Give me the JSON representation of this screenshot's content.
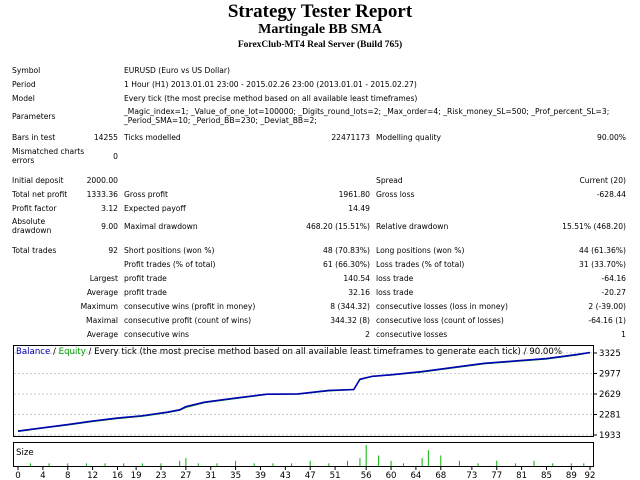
{
  "report": {
    "title": "Strategy Tester Report",
    "subtitle": "Martingale BB SMA",
    "server": "ForexClub-MT4 Real Server (Build 765)"
  },
  "info": {
    "symbol_label": "Symbol",
    "symbol": "EURUSD (Euro vs US Dollar)",
    "period_label": "Period",
    "period": "1 Hour (H1) 2013.01.01 23:00 - 2015.02.26 23:00 (2013.01.01 - 2015.02.27)",
    "model_label": "Model",
    "model": "Every tick (the most precise method based on all available least timeframes)",
    "parameters_label": "Parameters",
    "parameters": "_Magic_index=1; _Value_of_one_lot=100000; _Digits_round_lots=2; _Max_order=4; _Risk_money_SL=500; _Prof_percent_SL=3; _Period_SMA=10; _Period_BB=230; _Deviat_BB=2;"
  },
  "bars": {
    "bars_label": "Bars in test",
    "bars": "14255",
    "ticks_label": "Ticks modelled",
    "ticks": "22471173",
    "quality_label": "Modelling quality",
    "quality": "90.00%",
    "mismatch_label": "Mismatched charts errors",
    "mismatch": "0"
  },
  "deposit": {
    "initial_label": "Initial deposit",
    "initial": "2000.00",
    "spread_label": "Spread",
    "spread": "Current (20)",
    "net_label": "Total net profit",
    "net": "1333.36",
    "gross_profit_label": "Gross profit",
    "gross_profit": "1961.80",
    "gross_loss_label": "Gross loss",
    "gross_loss": "-628.44",
    "pf_label": "Profit factor",
    "pf": "3.12",
    "payoff_label": "Expected payoff",
    "payoff": "14.49",
    "abs_dd_label": "Absolute drawdown",
    "abs_dd": "9.00",
    "max_dd_label": "Maximal drawdown",
    "max_dd": "468.20 (15.51%)",
    "rel_dd_label": "Relative drawdown",
    "rel_dd": "15.51% (468.20)"
  },
  "trades": {
    "total_label": "Total trades",
    "total": "92",
    "short_label": "Short positions (won %)",
    "short": "48 (70.83%)",
    "long_label": "Long positions (won %)",
    "long": "44 (61.36%)",
    "profit_trades_label": "Profit trades (% of total)",
    "profit_trades": "61 (66.30%)",
    "loss_trades_label": "Loss trades (% of total)",
    "loss_trades": "31 (33.70%)",
    "largest": "Largest",
    "average": "Average",
    "maximum": "Maximum",
    "maximal": "Maximal",
    "profit_trade_label": "profit trade",
    "loss_trade_label": "loss trade",
    "largest_profit": "140.54",
    "largest_loss": "-64.16",
    "average_profit": "32.16",
    "average_loss": "-20.27",
    "cons_wins_money_label": "consecutive wins (profit in money)",
    "cons_wins_money": "8 (344.32)",
    "cons_losses_money_label": "consecutive losses (loss in money)",
    "cons_losses_money": "2 (-39.00)",
    "cons_profit_count_label": "consecutive profit (count of wins)",
    "cons_profit_count": "344.32 (8)",
    "cons_loss_count_label": "consecutive loss (count of losses)",
    "cons_loss_count": "-64.16 (1)",
    "cons_wins_label": "consecutive wins",
    "cons_wins": "2",
    "cons_losses_label": "consecutive losses",
    "cons_losses": "1"
  },
  "chart": {
    "legend_balance": "Balance",
    "legend_sep": " / ",
    "legend_equity": "Equity",
    "legend_rest": " / Every tick (the most precise method based on all available least timeframes to generate each tick) / 90.00%",
    "size_label": "Size",
    "balance_color": "#0000b4",
    "equity_color": "#00a000",
    "size_color": "#00b400"
  },
  "chart_data": {
    "type": "line",
    "series": [
      {
        "name": "Balance",
        "x": [
          0,
          4,
          8,
          12,
          16,
          20,
          24,
          26,
          27,
          30,
          35,
          40,
          45,
          50,
          54,
          55,
          57,
          60,
          65,
          70,
          75,
          80,
          85,
          90,
          92
        ],
        "values": [
          2000,
          2055,
          2110,
          2170,
          2220,
          2260,
          2320,
          2360,
          2415,
          2490,
          2560,
          2625,
          2630,
          2690,
          2705,
          2880,
          2930,
          2955,
          3010,
          3080,
          3150,
          3190,
          3230,
          3300,
          3333
        ]
      },
      {
        "name": "Equity",
        "x": [
          0,
          4,
          8,
          12,
          16,
          20,
          24,
          26,
          27,
          30,
          35,
          40,
          45,
          50,
          54,
          55,
          57,
          60,
          65,
          70,
          75,
          80,
          85,
          90,
          92
        ],
        "values": [
          1991,
          2050,
          2100,
          2160,
          2210,
          2250,
          2310,
          2350,
          2400,
          2480,
          2550,
          2620,
          2625,
          2680,
          2700,
          2870,
          2925,
          2950,
          3000,
          3070,
          3140,
          3180,
          3220,
          3290,
          3333
        ]
      },
      {
        "name": "Size",
        "x": [
          2,
          5,
          8,
          11,
          14,
          17,
          20,
          23,
          26,
          27,
          29,
          32,
          35,
          38,
          41,
          44,
          47,
          50,
          53,
          55,
          56,
          58,
          60,
          62,
          65,
          66,
          68,
          71,
          74,
          77,
          80,
          83,
          86,
          89,
          91
        ],
        "values": [
          1,
          1,
          1,
          1,
          1,
          1,
          1,
          1,
          2,
          3,
          1,
          1,
          2,
          1,
          1,
          1,
          2,
          1,
          2,
          3,
          8,
          4,
          2,
          1,
          3,
          6,
          4,
          2,
          1,
          2,
          1,
          2,
          1,
          1,
          1
        ]
      }
    ],
    "x_ticks": [
      "0",
      "4",
      "8",
      "12",
      "16",
      "19",
      "23",
      "27",
      "31",
      "35",
      "39",
      "43",
      "47",
      "51",
      "56",
      "60",
      "64",
      "68",
      "73",
      "77",
      "81",
      "85",
      "89",
      "92"
    ],
    "y_ticks": [
      "3325",
      "2977",
      "2629",
      "2281",
      "1933"
    ],
    "ylim": [
      1933,
      3325
    ],
    "xlim": [
      0,
      92
    ]
  }
}
